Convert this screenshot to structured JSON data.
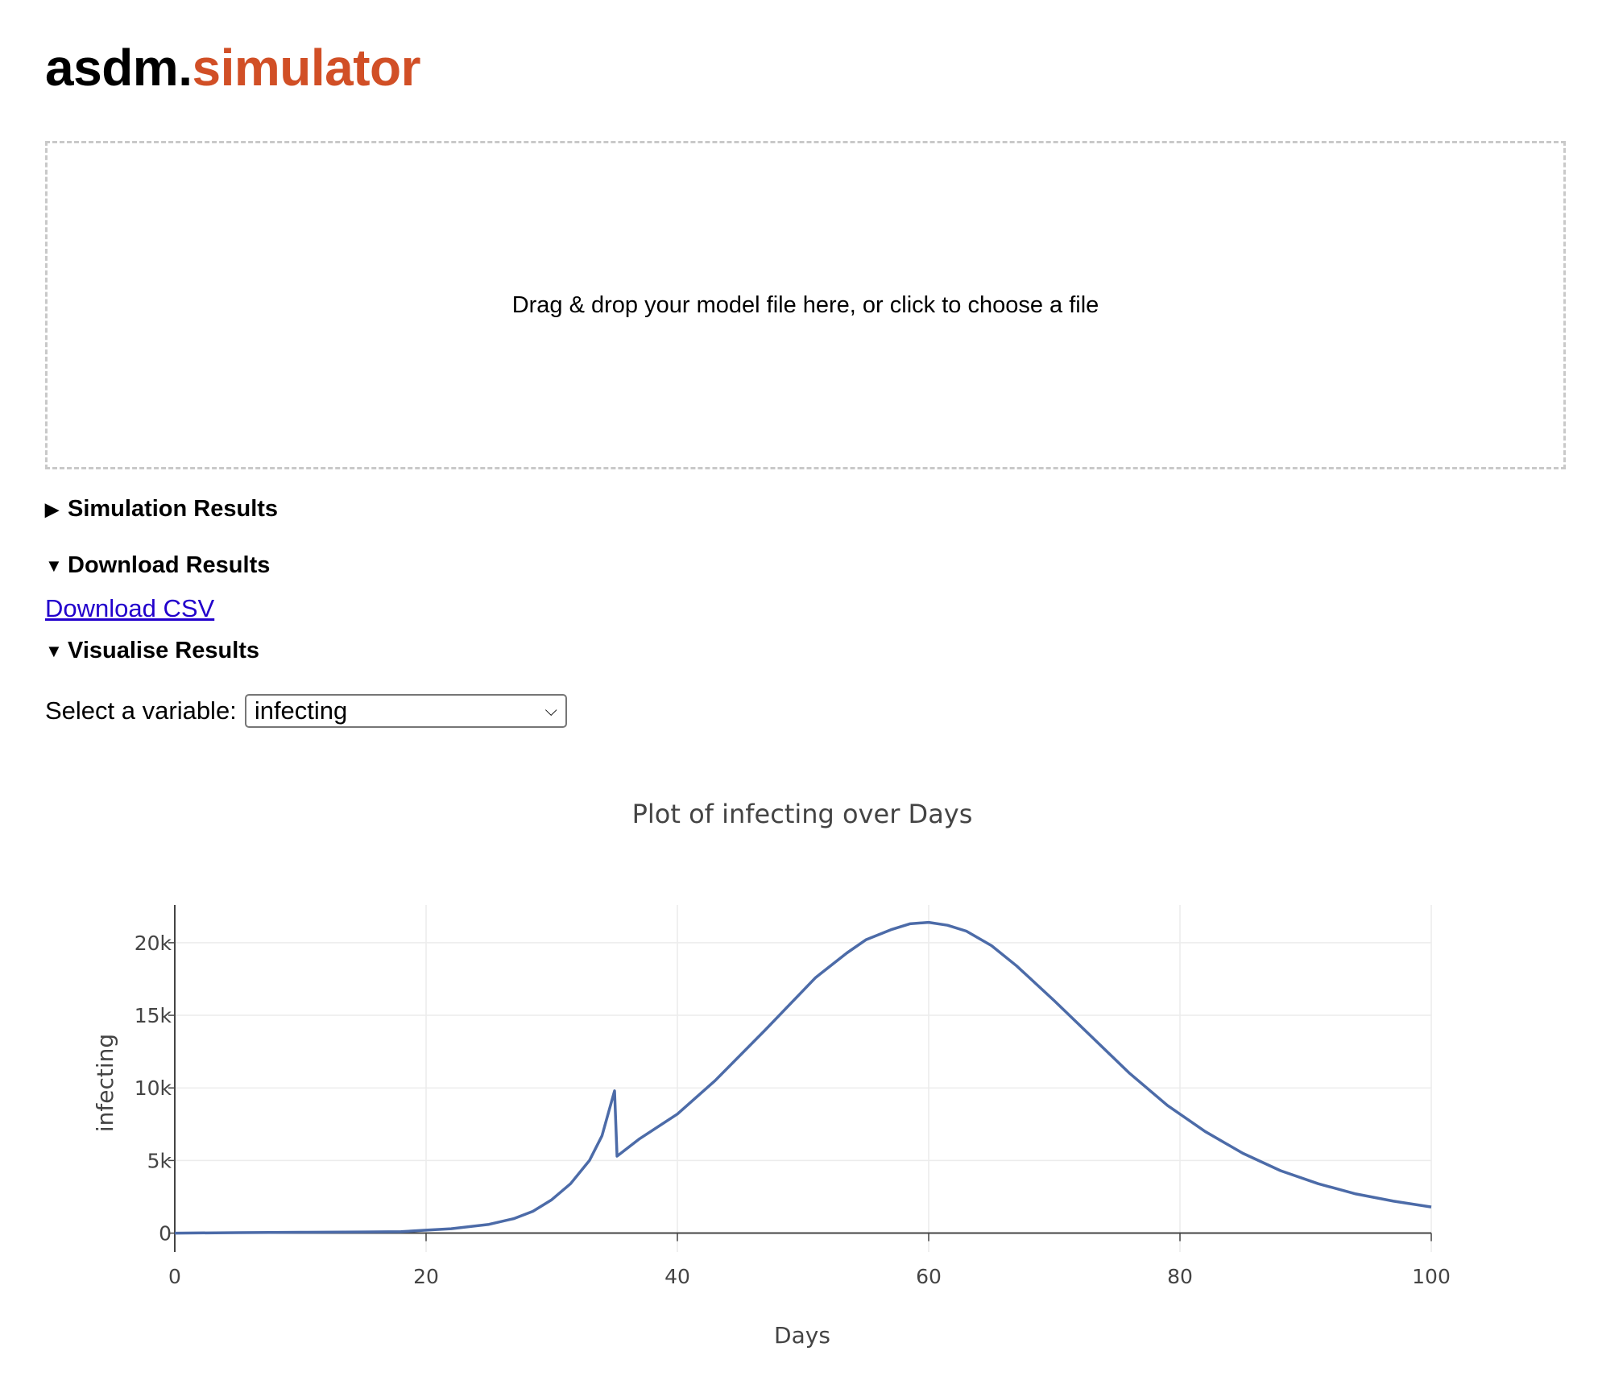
{
  "brand": {
    "part1": "asdm.",
    "part2": "simulator",
    "accent_color": "#d14f26"
  },
  "dropzone": {
    "text": "Drag & drop your model file here, or click to choose a file"
  },
  "sections": {
    "simulation": {
      "label": "Simulation Results",
      "expanded": false
    },
    "download": {
      "label": "Download Results",
      "expanded": true
    },
    "visualise": {
      "label": "Visualise Results",
      "expanded": true
    }
  },
  "download_link": "Download CSV",
  "variable_select": {
    "label": "Select a variable:",
    "value": "infecting"
  },
  "chart_data": {
    "type": "line",
    "title": "Plot of infecting over Days",
    "xlabel": "Days",
    "ylabel": "infecting",
    "xlim": [
      0,
      100
    ],
    "ylim": [
      -1300,
      22600
    ],
    "x_ticks": [
      0,
      20,
      40,
      60,
      80,
      100
    ],
    "x_tick_labels": [
      "0",
      "20",
      "40",
      "60",
      "80",
      "100"
    ],
    "y_ticks": [
      0,
      5000,
      10000,
      15000,
      20000
    ],
    "y_tick_labels": [
      "0",
      "5k",
      "10k",
      "15k",
      "20k"
    ],
    "grid": true,
    "line_color": "#4c6ba8",
    "series": [
      {
        "x": [
          0,
          5,
          10,
          15,
          18,
          20,
          22,
          25,
          27,
          28.5,
          30,
          31.5,
          33,
          34,
          35,
          35.2,
          37,
          40,
          43,
          47,
          51,
          53.5,
          55,
          57,
          58.5,
          60,
          61.5,
          63,
          65,
          67,
          70,
          73,
          76,
          79,
          82,
          85,
          88,
          91,
          94,
          97,
          100
        ],
        "y": [
          0,
          30,
          60,
          80,
          100,
          200,
          300,
          600,
          1000,
          1500,
          2300,
          3400,
          5000,
          6700,
          9800,
          5300,
          6500,
          8200,
          10500,
          14000,
          17600,
          19300,
          20200,
          20900,
          21300,
          21400,
          21200,
          20800,
          19800,
          18400,
          16000,
          13500,
          11000,
          8800,
          7000,
          5500,
          4300,
          3400,
          2700,
          2200,
          1800
        ]
      }
    ]
  }
}
